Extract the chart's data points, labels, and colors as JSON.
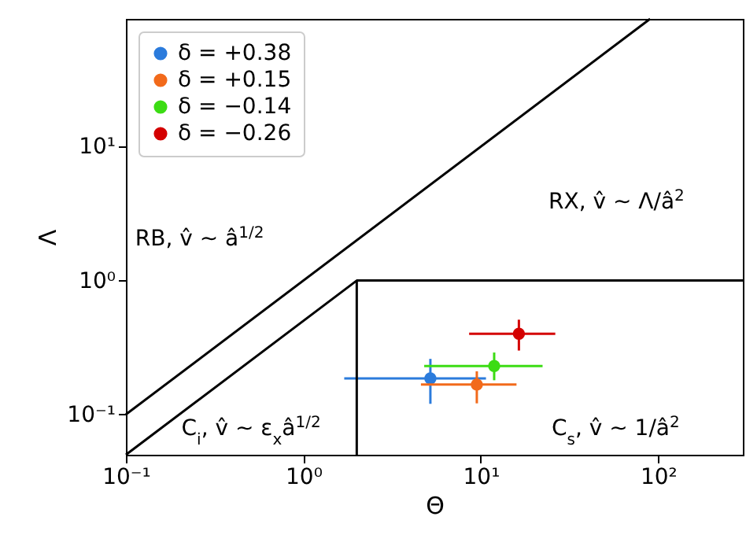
{
  "chart_data": {
    "type": "scatter",
    "xlabel": "Θ",
    "ylabel": "Λ",
    "log": "xy",
    "legend": "top left",
    "marker": "circle",
    "xlim": [
      0.1,
      300
    ],
    "ylim": [
      0.05,
      90
    ],
    "xticks": [
      {
        "value": 0.1,
        "label": "10⁻¹"
      },
      {
        "value": 1,
        "label": "10⁰"
      },
      {
        "value": 10,
        "label": "10¹"
      },
      {
        "value": 100,
        "label": "10²"
      }
    ],
    "yticks": [
      {
        "value": 0.1,
        "label": "10⁻¹"
      },
      {
        "value": 1,
        "label": "10⁰"
      },
      {
        "value": 10,
        "label": "10¹"
      }
    ],
    "series": [
      {
        "name": "δ = +0.38",
        "color": "#2b7bdc",
        "x": [
          5.2
        ],
        "values": [
          0.186
        ],
        "errors": [
          [
            0.12,
            0.26
          ]
        ],
        "xerrors": [
          [
            1.7,
            10.7
          ]
        ]
      },
      {
        "name": "δ = +0.15",
        "color": "#f26a1b",
        "x": [
          9.5
        ],
        "values": [
          0.167
        ],
        "errors": [
          [
            0.121,
            0.21
          ]
        ],
        "xerrors": [
          [
            4.6,
            15.9
          ]
        ]
      },
      {
        "name": "δ = −0.14",
        "color": "#3cdc14",
        "x": [
          11.9
        ],
        "values": [
          0.23
        ],
        "errors": [
          [
            0.18,
            0.29
          ]
        ],
        "xerrors": [
          [
            4.8,
            22.3
          ]
        ]
      },
      {
        "name": "δ = −0.26",
        "color": "#d40000",
        "x": [
          16.4
        ],
        "values": [
          0.4
        ],
        "errors": [
          [
            0.3,
            0.51
          ]
        ],
        "xerrors": [
          [
            8.6,
            26.3
          ]
        ]
      },
      {
        "type": "line",
        "marker": "none",
        "color": "#000000",
        "x": [
          0.1,
          90
        ],
        "values": [
          0.1,
          90
        ]
      },
      {
        "type": "line",
        "marker": "none",
        "color": "#000000",
        "x": [
          0.1,
          2,
          300
        ],
        "values": [
          0.05,
          1,
          1
        ]
      },
      {
        "type": "line",
        "marker": "none",
        "color": "#000000",
        "x": [
          2,
          2
        ],
        "values": [
          0.05,
          1
        ]
      }
    ],
    "annotations": [
      "RB, v̂ ~ â$^{1/2}$",
      "RX, v̂ ~ Λ/â$^{2}$",
      "C$_{i}$, v̂ ~ ε$_{x}$â$^{1/2}$",
      "C$_{s}$, v̂ ~ 1/â$^{2}$"
    ]
  }
}
